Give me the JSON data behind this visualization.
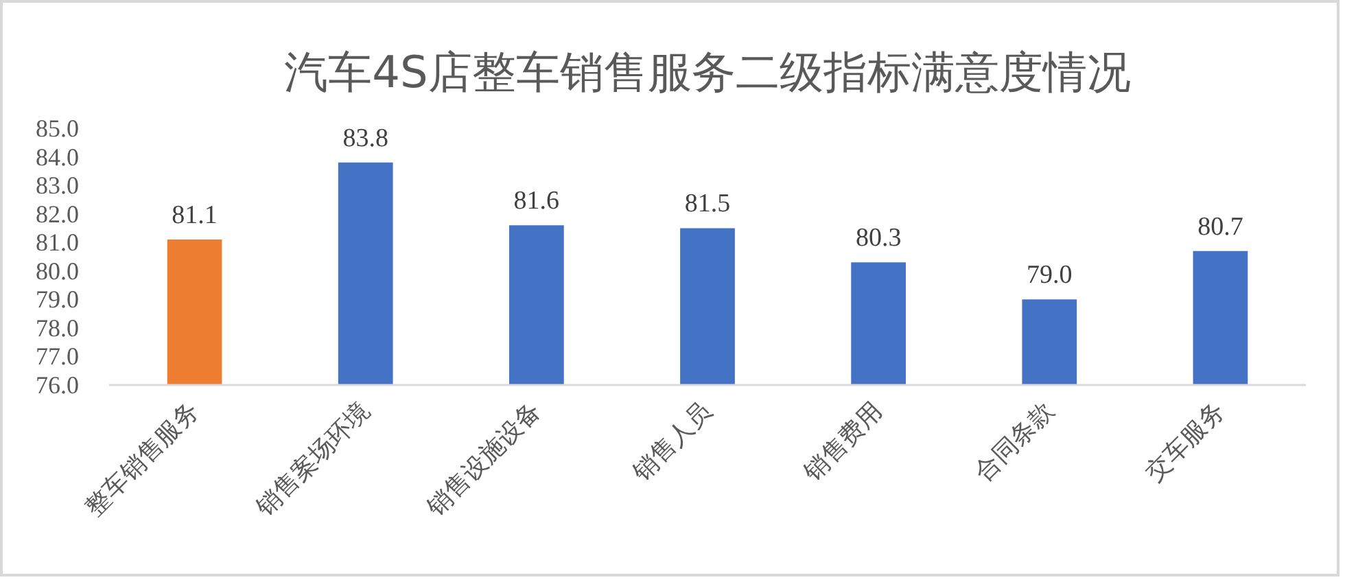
{
  "chart_data": {
    "type": "bar",
    "title": "汽车4S店整车销售服务二级指标满意度情况",
    "categories": [
      "整车销售服务",
      "销售案场环境",
      "销售设施设备",
      "销售人员",
      "销售费用",
      "合同条款",
      "交车服务"
    ],
    "values": [
      81.1,
      83.8,
      81.6,
      81.5,
      80.3,
      79.0,
      80.7
    ],
    "colors": [
      "#ed7d31",
      "#4472c4",
      "#4472c4",
      "#4472c4",
      "#4472c4",
      "#4472c4",
      "#4472c4"
    ],
    "value_labels": [
      "81.1",
      "83.8",
      "81.6",
      "81.5",
      "80.3",
      "79.0",
      "80.7"
    ],
    "ylim": [
      76,
      85
    ],
    "yticks": [
      {
        "value": 76,
        "label": "76.0"
      },
      {
        "value": 77,
        "label": "77.0"
      },
      {
        "value": 78,
        "label": "78.0"
      },
      {
        "value": 79,
        "label": "79.0"
      },
      {
        "value": 80,
        "label": "80.0"
      },
      {
        "value": 81,
        "label": "81.0"
      },
      {
        "value": 82,
        "label": "82.0"
      },
      {
        "value": 83,
        "label": "83.0"
      },
      {
        "value": 84,
        "label": "84.0"
      },
      {
        "value": 85,
        "label": "85.0"
      }
    ]
  }
}
